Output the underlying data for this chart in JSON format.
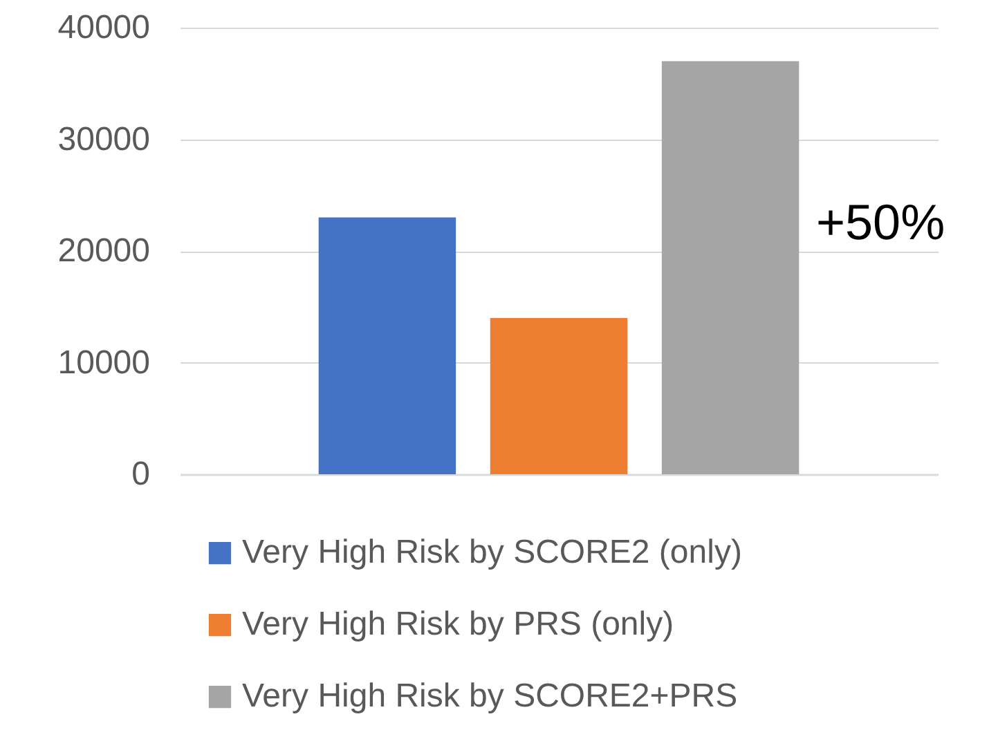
{
  "chart_data": {
    "type": "bar",
    "categories": [
      null
    ],
    "series": [
      {
        "name": "Very High Risk by SCORE2 (only)",
        "color": "#4472c4",
        "values": [
          23000
        ]
      },
      {
        "name": "Very High Risk by PRS (only)",
        "color": "#ed7d31",
        "values": [
          14000
        ]
      },
      {
        "name": "Very High Risk by SCORE2+PRS",
        "color": "#a5a5a5",
        "values": [
          37000
        ]
      }
    ],
    "ylim": [
      0,
      40000
    ],
    "yticks": [
      0,
      10000,
      20000,
      30000,
      40000
    ],
    "grid": "y",
    "legend": "bottom",
    "tick_labels": "y",
    "annotations": [
      "+50%"
    ]
  }
}
